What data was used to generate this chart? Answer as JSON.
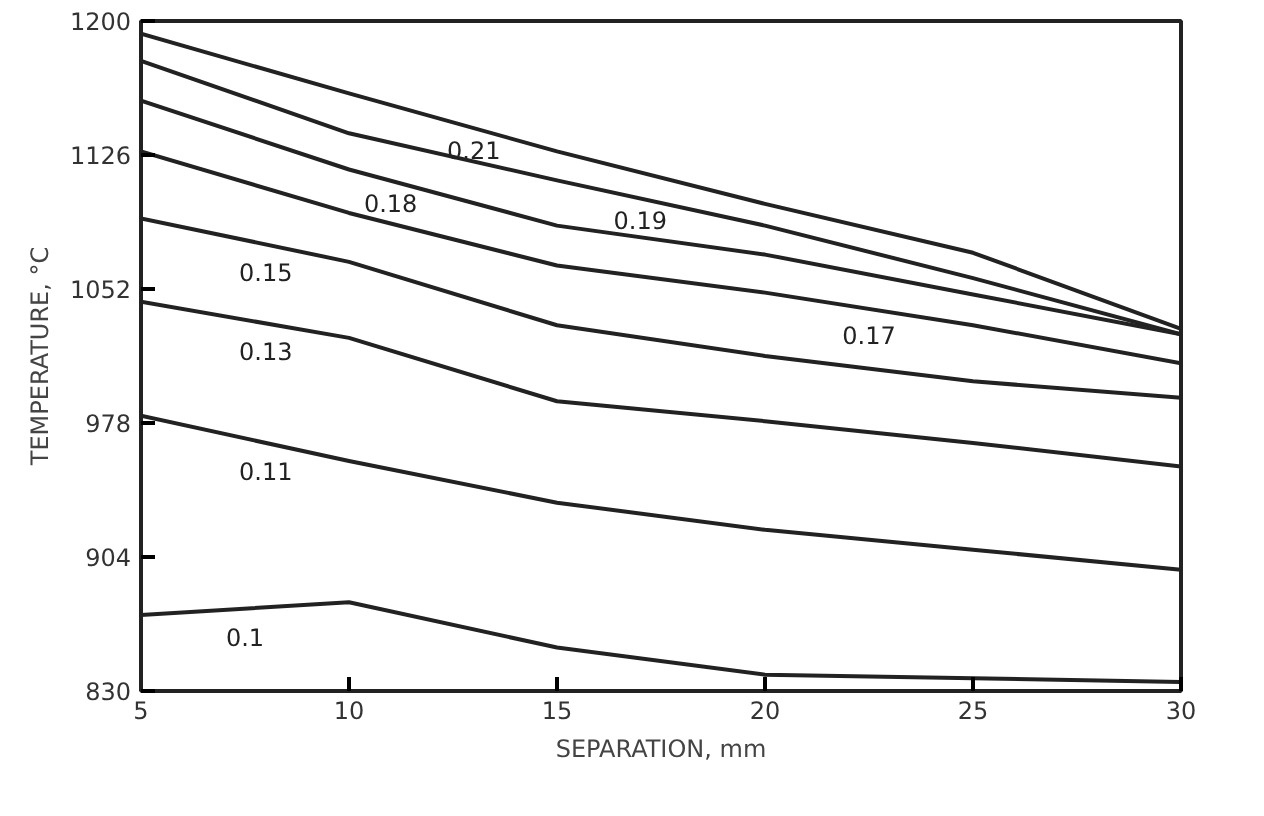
{
  "chart_data": {
    "type": "line",
    "xlabel": "SEPARATION, mm",
    "ylabel": "TEMPERATURE, °C",
    "x": [
      5,
      10,
      15,
      20,
      25,
      30
    ],
    "xlim": [
      5,
      30
    ],
    "ylim": [
      830,
      1200
    ],
    "xticks": [
      5,
      10,
      15,
      20,
      25,
      30
    ],
    "yticks": [
      830,
      904,
      978,
      1052,
      1126,
      1200
    ],
    "grid": false,
    "legend": false,
    "line_style": "solid",
    "series": [
      {
        "name": "0.21",
        "color": "#222222",
        "values": [
          1193,
          1160,
          1128,
          1099,
          1072,
          1030
        ]
      },
      {
        "name": "0.19",
        "color": "#222222",
        "values": [
          1178,
          1138,
          1112,
          1087,
          1058,
          1027
        ]
      },
      {
        "name": "0.18",
        "color": "#222222",
        "values": [
          1156,
          1118,
          1087,
          1071,
          1049,
          1027
        ]
      },
      {
        "name": "0.17",
        "color": "#222222",
        "values": [
          1128,
          1094,
          1065,
          1050,
          1032,
          1011
        ]
      },
      {
        "name": "0.15",
        "color": "#222222",
        "values": [
          1091,
          1067,
          1032,
          1015,
          1001,
          992
        ]
      },
      {
        "name": "0.13",
        "color": "#222222",
        "values": [
          1045,
          1025,
          990,
          979,
          967,
          954
        ]
      },
      {
        "name": "0.11",
        "color": "#222222",
        "values": [
          982,
          957,
          934,
          919,
          908,
          897
        ]
      },
      {
        "name": "0.1",
        "color": "#222222",
        "values": [
          872,
          879,
          854,
          839,
          837,
          835
        ]
      }
    ]
  }
}
